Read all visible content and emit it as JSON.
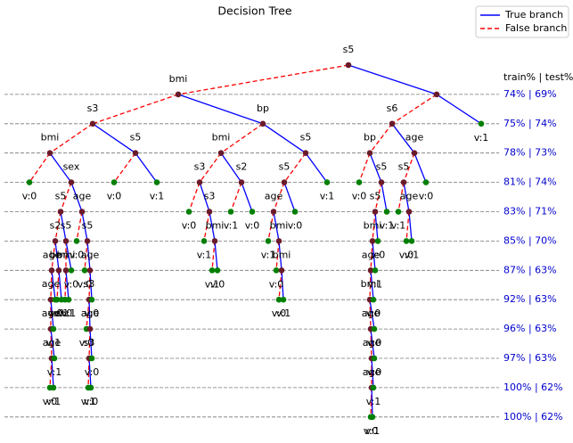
{
  "title": "Decision Tree",
  "legend": {
    "true_label": "True branch",
    "false_label": "False branch",
    "true_color": "#0000ff",
    "false_color": "#ff0000"
  },
  "level_header": "train% | test%",
  "levels": [
    "74% | 69%",
    "75% | 74%",
    "78% | 73%",
    "81% | 74%",
    "83% | 71%",
    "85% | 70%",
    "87% | 63%",
    "92% | 63%",
    "96% | 63%",
    "97% | 63%",
    "100% | 62%",
    "100% | 62%"
  ],
  "internal_color": "#6a1b2a",
  "leaf_color": "#007f00",
  "nodes": [
    {
      "label": "s5",
      "parent": null,
      "branch": null
    },
    {
      "label": "bmi",
      "parent": 0,
      "branch": "false"
    },
    {
      "label": null,
      "parent": 0,
      "branch": "true"
    },
    {
      "label": "s3",
      "parent": 1,
      "branch": "false"
    },
    {
      "label": "bp",
      "parent": 1,
      "branch": "true"
    },
    {
      "label": "s6",
      "parent": 2,
      "branch": "false"
    },
    {
      "label": "v:1",
      "parent": 2,
      "branch": "true"
    },
    {
      "label": "bmi",
      "parent": 3,
      "branch": "false"
    },
    {
      "label": "s5",
      "parent": 3,
      "branch": "true"
    },
    {
      "label": "bmi",
      "parent": 4,
      "branch": "false"
    },
    {
      "label": "s5",
      "parent": 4,
      "branch": "true"
    },
    {
      "label": "bp",
      "parent": 5,
      "branch": "false"
    },
    {
      "label": "age",
      "parent": 5,
      "branch": "true"
    },
    {
      "label": "v:0",
      "parent": 7,
      "branch": "false"
    },
    {
      "label": "sex",
      "parent": 7,
      "branch": "true"
    },
    {
      "label": "v:0",
      "parent": 8,
      "branch": "false"
    },
    {
      "label": "v:1",
      "parent": 8,
      "branch": "true"
    },
    {
      "label": "s3",
      "parent": 9,
      "branch": "false"
    },
    {
      "label": "s2",
      "parent": 9,
      "branch": "true"
    },
    {
      "label": "s5",
      "parent": 10,
      "branch": "false"
    },
    {
      "label": "v:1",
      "parent": 10,
      "branch": "true"
    },
    {
      "label": "v:0",
      "parent": 11,
      "branch": "false"
    },
    {
      "label": "s5",
      "parent": 11,
      "branch": "true"
    },
    {
      "label": "s5",
      "parent": 12,
      "branch": "false"
    },
    {
      "label": "v:0",
      "parent": 12,
      "branch": "true"
    },
    {
      "label": "s5",
      "parent": 14,
      "branch": "false"
    },
    {
      "label": "age",
      "parent": 14,
      "branch": "true"
    },
    {
      "label": "v:0",
      "parent": 17,
      "branch": "false"
    },
    {
      "label": "s3",
      "parent": 17,
      "branch": "true"
    },
    {
      "label": "v:1",
      "parent": 18,
      "branch": "false"
    },
    {
      "label": "v:0",
      "parent": 18,
      "branch": "true"
    },
    {
      "label": "age",
      "parent": 19,
      "branch": "false"
    },
    {
      "label": "v:0",
      "parent": 19,
      "branch": "true"
    },
    {
      "label": "s5",
      "parent": 22,
      "branch": "false"
    },
    {
      "label": "v:1",
      "parent": 22,
      "branch": "true"
    },
    {
      "label": "v:1",
      "parent": 23,
      "branch": "false"
    },
    {
      "label": "age",
      "parent": 23,
      "branch": "true"
    },
    {
      "label": "s2",
      "parent": 25,
      "branch": "false"
    },
    {
      "label": "s5",
      "parent": 25,
      "branch": "true"
    },
    {
      "label": "v:0",
      "parent": 26,
      "branch": "false"
    },
    {
      "label": "s5",
      "parent": 26,
      "branch": "true"
    },
    {
      "label": "v:1",
      "parent": 28,
      "branch": "false"
    },
    {
      "label": "bmi",
      "parent": 28,
      "branch": "true"
    },
    {
      "label": "v:1",
      "parent": 31,
      "branch": "false"
    },
    {
      "label": "bmi",
      "parent": 31,
      "branch": "true"
    },
    {
      "label": "bmi",
      "parent": 33,
      "branch": "false"
    },
    {
      "label": "v:0",
      "parent": 33,
      "branch": "true"
    },
    {
      "label": "v:0",
      "parent": 36,
      "branch": "false"
    },
    {
      "label": "v:1",
      "parent": 36,
      "branch": "true"
    },
    {
      "label": "age",
      "parent": 37,
      "branch": "false"
    },
    {
      "label": "bmi",
      "parent": 37,
      "branch": "true"
    },
    {
      "label": "bmi",
      "parent": 38,
      "branch": "false"
    },
    {
      "label": "v:0",
      "parent": 38,
      "branch": "true"
    },
    {
      "label": "v:0",
      "parent": 40,
      "branch": "false"
    },
    {
      "label": "age",
      "parent": 40,
      "branch": "true"
    },
    {
      "label": "v:1",
      "parent": 42,
      "branch": "false"
    },
    {
      "label": "v:0",
      "parent": 42,
      "branch": "true"
    },
    {
      "label": "v:0",
      "parent": 44,
      "branch": "false"
    },
    {
      "label": "bmi",
      "parent": 44,
      "branch": "true"
    },
    {
      "label": "age",
      "parent": 45,
      "branch": "false"
    },
    {
      "label": "v:1",
      "parent": 45,
      "branch": "true"
    },
    {
      "label": "age",
      "parent": 49,
      "branch": "false"
    },
    {
      "label": "v:0",
      "parent": 49,
      "branch": "true"
    },
    {
      "label": "v:0",
      "parent": 50,
      "branch": "false"
    },
    {
      "label": "v:1",
      "parent": 50,
      "branch": "true"
    },
    {
      "label": "v:0",
      "parent": 51,
      "branch": "false"
    },
    {
      "label": "v:1",
      "parent": 51,
      "branch": "true"
    },
    {
      "label": "s3",
      "parent": 54,
      "branch": "false"
    },
    {
      "label": "v:0",
      "parent": 54,
      "branch": "true"
    },
    {
      "label": "v:0",
      "parent": 58,
      "branch": "false"
    },
    {
      "label": "v:1",
      "parent": 58,
      "branch": "true"
    },
    {
      "label": "bmi",
      "parent": 59,
      "branch": "false"
    },
    {
      "label": "v:0",
      "parent": 59,
      "branch": "true"
    },
    {
      "label": "age",
      "parent": 61,
      "branch": "false"
    },
    {
      "label": "v:1",
      "parent": 61,
      "branch": "true"
    },
    {
      "label": "v:0",
      "parent": 67,
      "branch": "false"
    },
    {
      "label": "age",
      "parent": 67,
      "branch": "true"
    },
    {
      "label": "age",
      "parent": 71,
      "branch": "false"
    },
    {
      "label": "v:0",
      "parent": 71,
      "branch": "true"
    },
    {
      "label": "age",
      "parent": 73,
      "branch": "false"
    },
    {
      "label": "v:1",
      "parent": 73,
      "branch": "true"
    },
    {
      "label": "s3",
      "parent": 76,
      "branch": "false"
    },
    {
      "label": "v:0",
      "parent": 76,
      "branch": "true"
    },
    {
      "label": "age",
      "parent": 77,
      "branch": "false"
    },
    {
      "label": "v:0",
      "parent": 77,
      "branch": "true"
    },
    {
      "label": "v:0",
      "parent": 79,
      "branch": "false"
    },
    {
      "label": "v:1",
      "parent": 79,
      "branch": "true"
    },
    {
      "label": "v:1",
      "parent": 81,
      "branch": "false"
    },
    {
      "label": "v:0",
      "parent": 81,
      "branch": "true"
    },
    {
      "label": "age",
      "parent": 83,
      "branch": "false"
    },
    {
      "label": "v:1",
      "parent": 83,
      "branch": "true"
    },
    {
      "label": "v:0",
      "parent": 89,
      "branch": "false"
    },
    {
      "label": "v:1",
      "parent": 89,
      "branch": "true"
    }
  ]
}
